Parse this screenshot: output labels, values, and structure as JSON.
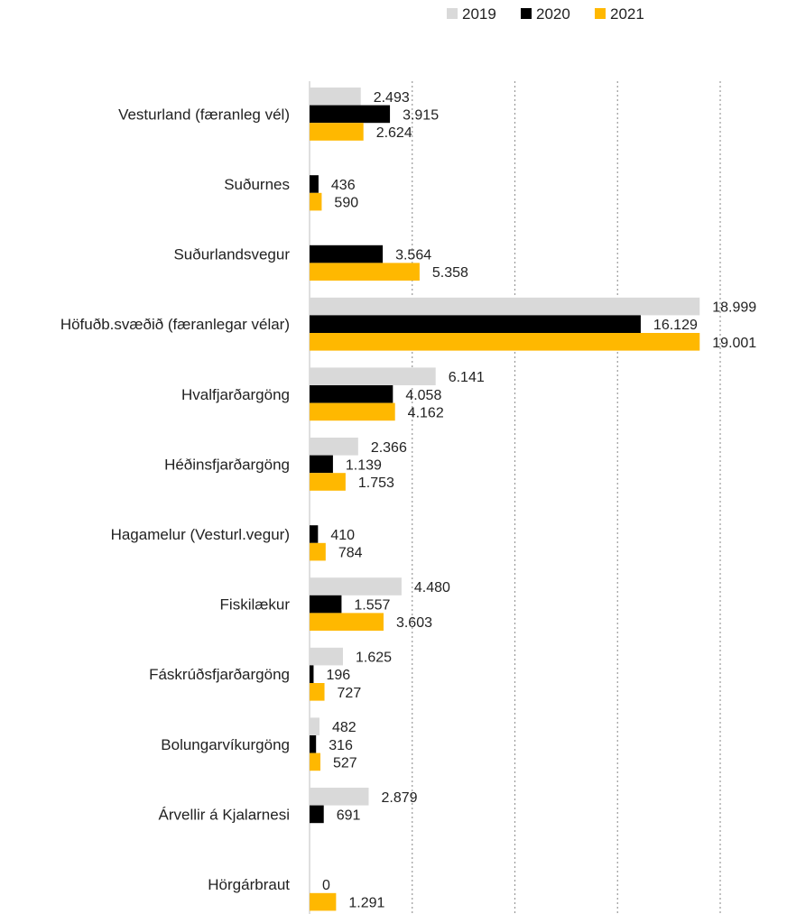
{
  "chart_data": {
    "type": "bar",
    "orientation": "horizontal",
    "number_format": "thousands separator '.'",
    "categories": [
      "Vesturland (færanleg vél)",
      "Suðurnes",
      "Suðurlandsvegur",
      "Höfuðb.svæðið (færanlegar vélar)",
      "Hvalfjarðargöng",
      "Héðinsfjarðargöng",
      "Hagamelur (Vesturl.vegur)",
      "Fiskilækur",
      "Fáskrúðsfjarðargöng",
      "Bolungarvíkurgöng",
      "Árvellir á Kjalarnesi",
      "Hörgárbraut"
    ],
    "series": [
      {
        "name": "2019",
        "color": "#d9d9d9",
        "values": [
          2493,
          null,
          null,
          18999,
          6141,
          2366,
          null,
          4480,
          1625,
          482,
          2879,
          null
        ],
        "labels": [
          "2.493",
          "",
          "",
          "18.999",
          "6.141",
          "2.366",
          "",
          "4.480",
          "1.625",
          "482",
          "2.879",
          ""
        ]
      },
      {
        "name": "2020",
        "color": "#000000",
        "values": [
          3915,
          436,
          3564,
          16129,
          4058,
          1139,
          410,
          1557,
          196,
          316,
          691,
          0
        ],
        "labels": [
          "3.915",
          "436",
          "3.564",
          "16.129",
          "4.058",
          "1.139",
          "410",
          "1.557",
          "196",
          "316",
          "691",
          "0"
        ]
      },
      {
        "name": "2021",
        "color": "#ffb800",
        "values": [
          2624,
          590,
          5358,
          19001,
          4162,
          1753,
          784,
          3603,
          727,
          527,
          null,
          1291
        ],
        "labels": [
          "2.624",
          "590",
          "5.358",
          "19.001",
          "4.162",
          "1.753",
          "784",
          "3.603",
          "727",
          "527",
          "",
          "1.291"
        ]
      }
    ],
    "xlim": [
      0,
      20000
    ],
    "grid": "vertical dotted",
    "legend": "top",
    "title": "",
    "xlabel": "",
    "ylabel": ""
  }
}
